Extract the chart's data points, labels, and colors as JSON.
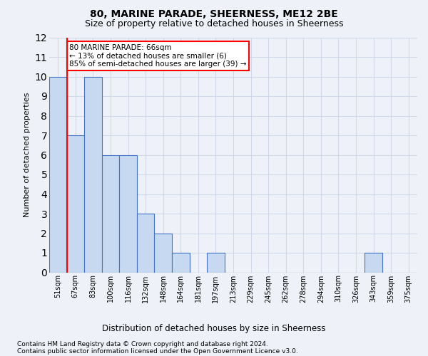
{
  "title": "80, MARINE PARADE, SHEERNESS, ME12 2BE",
  "subtitle": "Size of property relative to detached houses in Sheerness",
  "xlabel_bottom": "Distribution of detached houses by size in Sheerness",
  "ylabel": "Number of detached properties",
  "footnote1": "Contains HM Land Registry data © Crown copyright and database right 2024.",
  "footnote2": "Contains public sector information licensed under the Open Government Licence v3.0.",
  "tick_labels": [
    "51sqm",
    "67sqm",
    "83sqm",
    "100sqm",
    "116sqm",
    "132sqm",
    "148sqm",
    "164sqm",
    "181sqm",
    "197sqm",
    "213sqm",
    "229sqm",
    "245sqm",
    "262sqm",
    "278sqm",
    "294sqm",
    "310sqm",
    "326sqm",
    "343sqm",
    "359sqm",
    "375sqm"
  ],
  "bar_values": [
    10,
    7,
    10,
    6,
    6,
    3,
    2,
    1,
    0,
    1,
    0,
    0,
    0,
    0,
    0,
    0,
    0,
    0,
    1,
    0,
    0
  ],
  "bar_color": "#c6d9f0",
  "bar_edge_color": "#4472c4",
  "red_line_index": 1,
  "ylim": [
    0,
    12
  ],
  "yticks": [
    0,
    1,
    2,
    3,
    4,
    5,
    6,
    7,
    8,
    9,
    10,
    11,
    12
  ],
  "annotation_text": "80 MARINE PARADE: 66sqm\n← 13% of detached houses are smaller (6)\n85% of semi-detached houses are larger (39) →",
  "annotation_box_color": "white",
  "annotation_box_edge_color": "red",
  "grid_color": "#d0d8e8",
  "background_color": "#eef2f8",
  "title_fontsize": 10,
  "subtitle_fontsize": 9,
  "ylabel_fontsize": 8,
  "xtick_fontsize": 7,
  "ytick_fontsize": 8,
  "annotation_fontsize": 7.5,
  "footnote_fontsize": 6.5,
  "xlabel_bottom_fontsize": 8.5
}
